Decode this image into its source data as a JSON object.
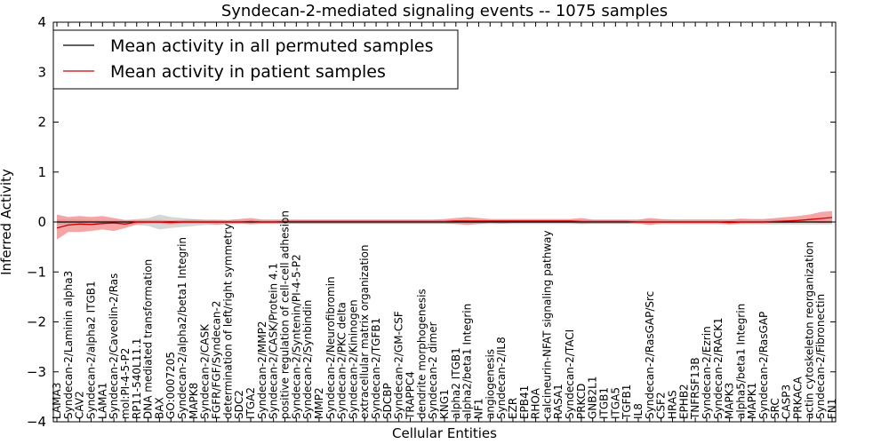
{
  "chart_data": {
    "type": "line",
    "title": "Syndecan-2-mediated signaling events -- 1075 samples",
    "xlabel": "Cellular Entities",
    "ylabel": "Inferred Activity",
    "ylim": [
      -4,
      4
    ],
    "yticks": [
      -4,
      -3,
      -2,
      -1,
      0,
      1,
      2,
      3,
      4
    ],
    "grid": false,
    "legend_position": "top-left",
    "colors": {
      "permuted_line": "#000000",
      "permuted_band": "#bbbbbb",
      "patient_line": "#cc0000",
      "patient_band": "#f08080"
    },
    "categories": [
      "LAMA3",
      "Syndecan-2/Laminin alpha3",
      "CAV2",
      "Syndecan-2/alpha2 ITGB1",
      "LAMA1",
      "Syndecan-2/Caveolin-2/Ras",
      "mol:PI-4-5-P2",
      "RP11-540L11.1",
      "DNA mediated transformation",
      "BAX",
      "GO:0007205",
      "Syndecan-2/alpha2/beta1 Integrin",
      "MAPK8",
      "Syndecan-2/CASK",
      "FGFR/FGF/Syndecan-2",
      "determination of left/right symmetry",
      "SDC2",
      "ITGA2",
      "Syndecan-2/MMP2",
      "Syndecan-2/CASK/Protein 4.1",
      "positive regulation of cell-cell adhesion",
      "Syndecan-2/Syntenin/PI-4-5-P2",
      "Syndecan-2/Synbindin",
      "MMP2",
      "Syndecan-2/Neurofibromin",
      "Syndecan-2/PKC delta",
      "Syndecan-2/Kininogen",
      "extracellular matrix organization",
      "Syndecan-2/TGFB1",
      "SDCBP",
      "Syndecan-2/GM-CSF",
      "TRAPPC4",
      "dendrite morphogenesis",
      "Syndecan-2 dimer",
      "KNG1",
      "alpha2 ITGB1",
      "alpha2/beta1 Integrin",
      "NF1",
      "angiogenesis",
      "Syndecan-2/IL8",
      "EZR",
      "EPB41",
      "RHOA",
      "calcineurin-NFAT signaling pathway",
      "RASA1",
      "Syndecan-2/TACI",
      "PRKCD",
      "GNB2L1",
      "ITGB1",
      "ITGA5",
      "TGFB1",
      "IL8",
      "Syndecan-2/RasGAP/Src",
      "CSF2",
      "HRAS",
      "EPHB2",
      "TNFRSF13B",
      "Syndecan-2/Ezrin",
      "Syndecan-2/RACK1",
      "MAPK3",
      "alpha5/beta1 Integrin",
      "MAPK1",
      "Syndecan-2/RasGAP",
      "SRC",
      "CASP3",
      "PRKACA",
      "actin cytoskeleton reorganization",
      "Syndecan-2/Fibronectin",
      "FN1"
    ],
    "series": [
      {
        "name": "Mean activity in all permuted samples",
        "values": [
          0.0,
          0.0,
          0.0,
          0.0,
          0.0,
          0.0,
          0.0,
          0.0,
          0.0,
          0.0,
          0.0,
          0.0,
          0.0,
          0.0,
          0.0,
          0.0,
          0.0,
          0.0,
          0.0,
          0.0,
          0.0,
          0.0,
          0.0,
          0.0,
          0.0,
          0.0,
          0.0,
          0.0,
          0.0,
          0.0,
          0.0,
          0.0,
          0.0,
          0.0,
          0.0,
          0.0,
          0.0,
          0.0,
          0.0,
          0.0,
          0.0,
          0.0,
          0.0,
          0.0,
          0.0,
          0.0,
          0.0,
          0.0,
          0.0,
          0.0,
          0.0,
          0.0,
          0.0,
          0.0,
          0.0,
          0.0,
          0.0,
          0.0,
          0.0,
          0.0,
          0.0,
          0.0,
          0.0,
          0.0,
          0.0,
          0.0,
          0.0,
          0.0,
          0.0
        ],
        "band_lower": [
          -0.06,
          -0.05,
          -0.05,
          -0.04,
          -0.04,
          -0.04,
          -0.04,
          -0.06,
          -0.08,
          -0.15,
          -0.12,
          -0.1,
          -0.08,
          -0.06,
          -0.06,
          -0.05,
          -0.04,
          -0.04,
          -0.04,
          -0.04,
          -0.04,
          -0.04,
          -0.04,
          -0.04,
          -0.04,
          -0.04,
          -0.04,
          -0.04,
          -0.04,
          -0.04,
          -0.04,
          -0.04,
          -0.04,
          -0.04,
          -0.04,
          -0.04,
          -0.04,
          -0.04,
          -0.04,
          -0.04,
          -0.04,
          -0.04,
          -0.04,
          -0.04,
          -0.04,
          -0.04,
          -0.04,
          -0.04,
          -0.04,
          -0.04,
          -0.04,
          -0.04,
          -0.05,
          -0.05,
          -0.05,
          -0.05,
          -0.05,
          -0.05,
          -0.05,
          -0.05,
          -0.05,
          -0.05,
          -0.05,
          -0.05,
          -0.05,
          -0.05,
          -0.05,
          -0.05,
          -0.05
        ],
        "band_upper": [
          0.06,
          0.05,
          0.05,
          0.04,
          0.04,
          0.04,
          0.04,
          0.06,
          0.08,
          0.15,
          0.1,
          0.08,
          0.06,
          0.05,
          0.05,
          0.04,
          0.04,
          0.04,
          0.04,
          0.04,
          0.04,
          0.04,
          0.04,
          0.04,
          0.04,
          0.04,
          0.04,
          0.04,
          0.04,
          0.04,
          0.04,
          0.04,
          0.04,
          0.04,
          0.04,
          0.04,
          0.04,
          0.04,
          0.04,
          0.04,
          0.04,
          0.04,
          0.04,
          0.04,
          0.04,
          0.04,
          0.04,
          0.04,
          0.04,
          0.04,
          0.04,
          0.04,
          0.05,
          0.05,
          0.05,
          0.05,
          0.05,
          0.05,
          0.05,
          0.05,
          0.05,
          0.05,
          0.05,
          0.05,
          0.05,
          0.05,
          0.05,
          0.05,
          0.05
        ]
      },
      {
        "name": "Mean activity in patient samples",
        "values": [
          -0.12,
          -0.06,
          -0.04,
          -0.05,
          -0.03,
          -0.02,
          -0.04,
          0.0,
          0.0,
          0.0,
          -0.01,
          0.0,
          0.0,
          0.0,
          0.0,
          0.0,
          0.0,
          0.01,
          0.0,
          0.0,
          0.01,
          0.01,
          0.01,
          0.01,
          0.01,
          0.01,
          0.01,
          0.01,
          0.01,
          0.01,
          0.01,
          0.01,
          0.01,
          0.01,
          0.01,
          0.02,
          0.02,
          0.02,
          0.02,
          0.02,
          0.02,
          0.02,
          0.02,
          0.02,
          0.02,
          0.02,
          0.01,
          0.01,
          0.01,
          0.01,
          0.01,
          0.0,
          0.0,
          0.0,
          0.0,
          0.0,
          0.0,
          0.0,
          0.0,
          -0.01,
          0.0,
          0.0,
          0.0,
          0.01,
          0.02,
          0.03,
          0.05,
          0.07,
          0.09
        ],
        "band_lower": [
          -0.35,
          -0.2,
          -0.2,
          -0.18,
          -0.15,
          -0.18,
          -0.12,
          -0.05,
          -0.03,
          -0.03,
          -0.05,
          -0.03,
          -0.03,
          -0.03,
          -0.05,
          -0.03,
          -0.03,
          -0.05,
          -0.03,
          -0.03,
          -0.03,
          -0.03,
          -0.03,
          -0.03,
          -0.03,
          -0.03,
          -0.03,
          -0.03,
          -0.03,
          -0.03,
          -0.03,
          -0.03,
          -0.03,
          -0.03,
          -0.03,
          -0.04,
          -0.06,
          -0.04,
          -0.02,
          -0.03,
          -0.02,
          -0.02,
          -0.02,
          -0.02,
          -0.02,
          -0.02,
          -0.04,
          -0.03,
          -0.03,
          -0.03,
          -0.03,
          -0.03,
          -0.06,
          -0.03,
          -0.03,
          -0.03,
          -0.03,
          -0.03,
          -0.03,
          -0.05,
          -0.03,
          -0.03,
          -0.03,
          -0.02,
          -0.02,
          -0.01,
          0.0,
          -0.02,
          -0.01
        ],
        "band_upper": [
          0.15,
          0.1,
          0.12,
          0.1,
          0.12,
          0.08,
          0.04,
          0.04,
          0.04,
          0.04,
          0.03,
          0.04,
          0.05,
          0.04,
          0.04,
          0.04,
          0.06,
          0.08,
          0.05,
          0.05,
          0.05,
          0.05,
          0.05,
          0.05,
          0.05,
          0.05,
          0.05,
          0.05,
          0.05,
          0.05,
          0.05,
          0.05,
          0.05,
          0.05,
          0.06,
          0.08,
          0.1,
          0.08,
          0.06,
          0.06,
          0.06,
          0.06,
          0.06,
          0.06,
          0.06,
          0.06,
          0.08,
          0.05,
          0.05,
          0.05,
          0.05,
          0.05,
          0.08,
          0.06,
          0.05,
          0.05,
          0.05,
          0.05,
          0.05,
          0.05,
          0.07,
          0.06,
          0.06,
          0.08,
          0.1,
          0.12,
          0.15,
          0.2,
          0.22
        ]
      }
    ]
  }
}
